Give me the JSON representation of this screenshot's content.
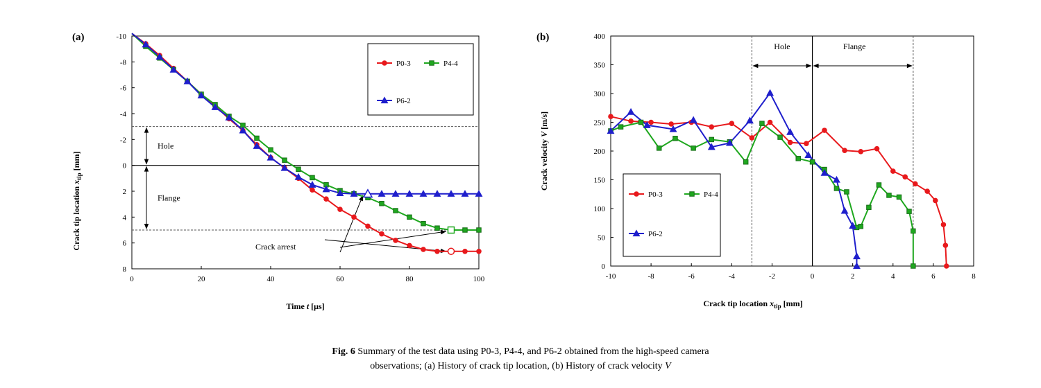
{
  "colors": {
    "red": "#e8191c",
    "green": "#1fa81f",
    "blue": "#1f1fcc",
    "dark": "#222222"
  },
  "chart_data": [
    {
      "type": "line",
      "panel_label": "(a)",
      "xlabel_prefix": "Time ",
      "xlabel_var": "t",
      "xlabel_suffix": " [μs]",
      "ylabel_prefix": "Crack tip location ",
      "ylabel_var": "x",
      "ylabel_sub": "tip",
      "ylabel_suffix": " [mm]",
      "xlim": [
        0,
        100
      ],
      "ylim": [
        -10,
        8
      ],
      "y_inverted": true,
      "xticks": [
        "0",
        "20",
        "40",
        "60",
        "80",
        "100"
      ],
      "yticks": [
        "-10",
        "-8",
        "-6",
        "-4",
        "-2",
        "0",
        "2",
        "4",
        "6",
        "8"
      ],
      "hole_label": "Hole",
      "flange_label": "Flange",
      "hole_range": [
        -3,
        0
      ],
      "flange_range": [
        0,
        5
      ],
      "arrest_label": "Crack arrest",
      "legend": [
        "P0-3",
        "P4-4",
        "P6-2"
      ],
      "series": [
        {
          "name": "P0-3",
          "color": "#e8191c",
          "marker": "circle",
          "x": [
            0,
            4,
            8,
            12,
            16,
            20,
            24,
            28,
            32,
            36,
            40,
            44,
            48,
            52,
            56,
            60,
            64,
            68,
            72,
            76,
            80,
            84,
            88,
            92,
            96,
            100
          ],
          "y": [
            -10.2,
            -9.4,
            -8.5,
            -7.5,
            -6.5,
            -5.5,
            -4.6,
            -3.6,
            -2.7,
            -1.6,
            -0.6,
            0.2,
            1.0,
            1.9,
            2.6,
            3.4,
            4.0,
            4.7,
            5.3,
            5.8,
            6.2,
            6.5,
            6.65,
            6.65,
            6.65,
            6.65
          ],
          "arrest_index": 23
        },
        {
          "name": "P4-4",
          "color": "#1fa81f",
          "marker": "square",
          "x": [
            0,
            4,
            8,
            12,
            16,
            20,
            24,
            28,
            32,
            36,
            40,
            44,
            48,
            52,
            56,
            60,
            64,
            68,
            72,
            76,
            80,
            84,
            88,
            92,
            96,
            100
          ],
          "y": [
            -10.2,
            -9.2,
            -8.3,
            -7.4,
            -6.5,
            -5.5,
            -4.7,
            -3.8,
            -3.1,
            -2.1,
            -1.2,
            -0.4,
            0.3,
            0.95,
            1.5,
            1.95,
            2.2,
            2.5,
            2.95,
            3.5,
            4.0,
            4.5,
            4.85,
            5.0,
            5.0,
            5.0
          ],
          "arrest_index": 23
        },
        {
          "name": "P6-2",
          "color": "#1f1fcc",
          "marker": "triangle",
          "x": [
            0,
            4,
            8,
            12,
            16,
            20,
            24,
            28,
            32,
            36,
            40,
            44,
            48,
            52,
            56,
            60,
            64,
            68,
            72,
            76,
            80,
            84,
            88,
            92,
            96,
            100
          ],
          "y": [
            -10.2,
            -9.35,
            -8.4,
            -7.4,
            -6.5,
            -5.4,
            -4.5,
            -3.7,
            -2.7,
            -1.5,
            -0.6,
            0.2,
            0.9,
            1.5,
            1.85,
            2.15,
            2.2,
            2.2,
            2.2,
            2.2,
            2.2,
            2.2,
            2.2,
            2.2,
            2.2,
            2.2
          ],
          "arrest_index": 17
        }
      ]
    },
    {
      "type": "line",
      "panel_label": "(b)",
      "xlabel_prefix": "Crack tip location ",
      "xlabel_var": "x",
      "xlabel_sub": "tip",
      "xlabel_suffix": " [mm]",
      "ylabel_prefix": "Crack velocity ",
      "ylabel_var": "V",
      "ylabel_suffix": " [m/s]",
      "xlim": [
        -10,
        8
      ],
      "ylim": [
        0,
        400
      ],
      "xticks": [
        "-10",
        "-8",
        "-6",
        "-4",
        "-2",
        "0",
        "2",
        "4",
        "6",
        "8"
      ],
      "yticks": [
        "0",
        "50",
        "100",
        "150",
        "200",
        "250",
        "300",
        "350",
        "400"
      ],
      "hole_label": "Hole",
      "flange_label": "Flange",
      "hole_range": [
        -3,
        0
      ],
      "flange_range": [
        0,
        5
      ],
      "legend": [
        "P0-3",
        "P4-4",
        "P6-2"
      ],
      "series": [
        {
          "name": "P0-3",
          "color": "#e8191c",
          "marker": "circle",
          "x": [
            -10,
            -9,
            -8,
            -7,
            -6,
            -5,
            -4,
            -3,
            -2.1,
            -1.1,
            -0.3,
            0.6,
            1.6,
            2.4,
            3.2,
            4.0,
            4.6,
            5.1,
            5.7,
            6.1,
            6.5,
            6.6,
            6.65
          ],
          "y": [
            260,
            252,
            250,
            247,
            250,
            242,
            248,
            223,
            250,
            215,
            213,
            236,
            201,
            199,
            204,
            165,
            155,
            143,
            130,
            114,
            72,
            36,
            0
          ]
        },
        {
          "name": "P4-4",
          "color": "#1fa81f",
          "marker": "square",
          "x": [
            -10,
            -9.5,
            -8.5,
            -7.6,
            -6.8,
            -5.9,
            -5,
            -4.1,
            -3.3,
            -2.5,
            -1.6,
            -0.7,
            0,
            0.6,
            1.2,
            1.7,
            2.2,
            2.4,
            2.8,
            3.3,
            3.8,
            4.3,
            4.8,
            5.0,
            5.0
          ],
          "y": [
            235,
            242,
            250,
            205,
            222,
            205,
            220,
            216,
            181,
            248,
            224,
            187,
            181,
            168,
            135,
            129,
            67,
            69,
            102,
            141,
            123,
            120,
            95,
            61,
            0
          ]
        },
        {
          "name": "P6-2",
          "color": "#1f1fcc",
          "marker": "triangle",
          "x": [
            -10,
            -9,
            -8.2,
            -6.9,
            -5.9,
            -5,
            -4.1,
            -3.1,
            -2.1,
            -1.1,
            -0.2,
            0.6,
            1.2,
            1.6,
            2.0,
            2.2,
            2.2
          ],
          "y": [
            235,
            268,
            245,
            238,
            254,
            207,
            214,
            253,
            301,
            233,
            193,
            162,
            150,
            96,
            70,
            17,
            0
          ]
        }
      ]
    }
  ],
  "caption": {
    "label": "Fig. 6",
    "line1": " Summary of the test data using P0-3, P4-4, and P6-2 obtained from the high-speed camera",
    "line2": "observations; (a) History of crack tip location, (b) History of crack velocity ",
    "line2_var": "V"
  }
}
